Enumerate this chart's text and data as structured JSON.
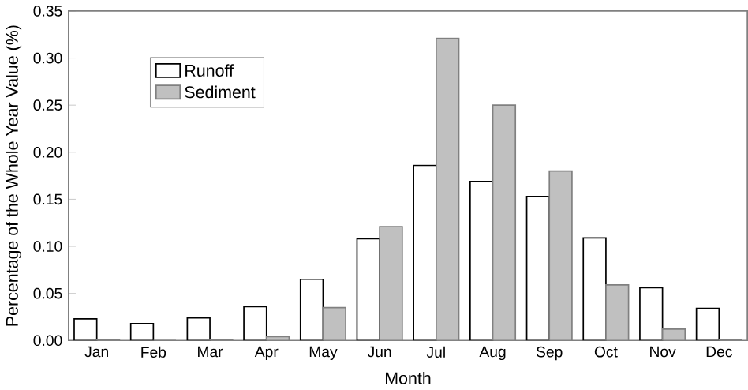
{
  "chart_data": {
    "type": "bar",
    "xlabel": "Month",
    "ylabel": "Percentage of the Whole Year Value (%)",
    "categories": [
      "Jan",
      "Feb",
      "Mar",
      "Apr",
      "May",
      "Jun",
      "Jul",
      "Aug",
      "Sep",
      "Oct",
      "Nov",
      "Dec"
    ],
    "series": [
      {
        "name": "Runoff",
        "color": "#ffffff",
        "values": [
          0.023,
          0.018,
          0.024,
          0.036,
          0.065,
          0.108,
          0.186,
          0.169,
          0.153,
          0.109,
          0.056,
          0.034
        ]
      },
      {
        "name": "Sediment",
        "color": "#c0c0c0",
        "values": [
          0.001,
          0.0,
          0.001,
          0.004,
          0.035,
          0.121,
          0.321,
          0.25,
          0.18,
          0.059,
          0.012,
          0.001
        ]
      }
    ],
    "ylim": [
      0,
      0.35
    ],
    "yticks": [
      {
        "value": 0,
        "label": "0.00"
      },
      {
        "value": 0.05,
        "label": "0.05"
      },
      {
        "value": 0.1,
        "label": "0.10"
      },
      {
        "value": 0.15,
        "label": "0.15"
      },
      {
        "value": 0.2,
        "label": "0.20"
      },
      {
        "value": 0.25,
        "label": "0.25"
      },
      {
        "value": 0.3,
        "label": "0.30"
      },
      {
        "value": 0.35,
        "label": "0.35"
      }
    ],
    "legend": "top left",
    "grid": false
  }
}
